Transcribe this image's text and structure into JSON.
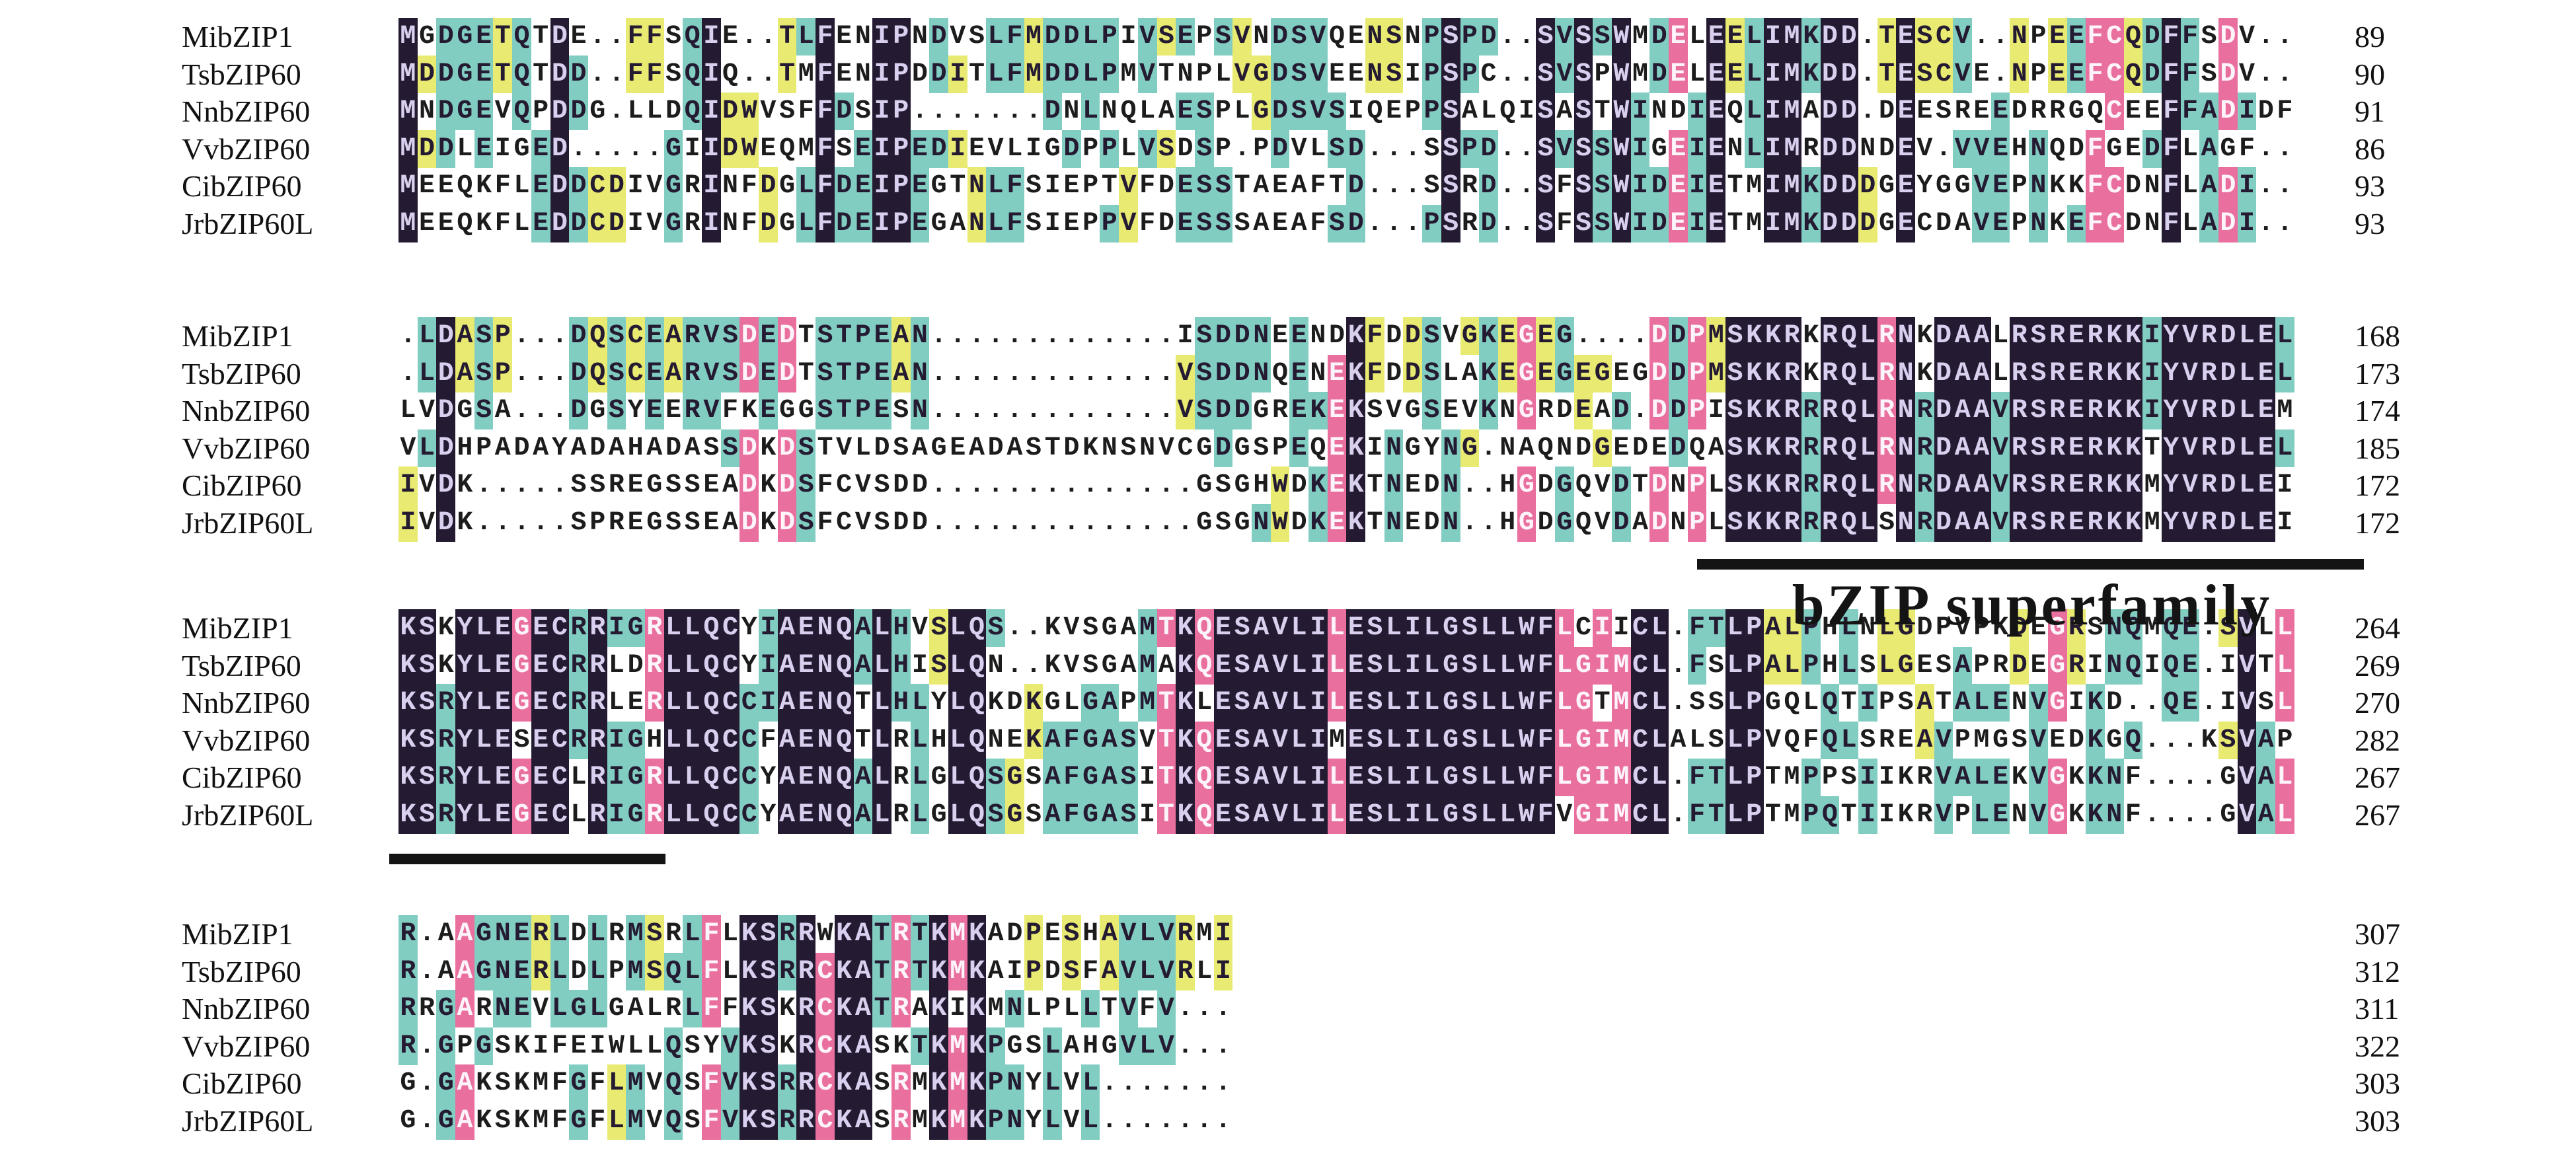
{
  "figure": {
    "kind": "multiple-sequence-alignment",
    "annotation": {
      "label": "bZIP superfamily"
    },
    "palette": {
      "identity_100": "#241b32",
      "identity_83": "#e96f9f",
      "identity_50_67": "#82cdc2",
      "identity_33": "#e9ea71",
      "background": "#ffffff",
      "text_on_dark": "#d9cfee",
      "text_plain": "#1c1c1c"
    },
    "row_labels": [
      "MibZIP1",
      "TsbZIP60",
      "NnbZIP60",
      "VvbZIP60",
      "CibZIP60",
      "JrbZIP60L"
    ],
    "blocks": [
      {
        "sequences": [
          "MGDGETQTDE..FFSQIE..TLFENIPNDVSLFMDDLPIVSEPSVNDSVQENSNPSPD..SVSSWMDELEELIMKDD.TESCV..NPEEFCQDFFSDV..",
          "MDDGETQTDD..FFSQIQ..TMFENIPDDITLFMDDLPMVTNPLVGDSVEENSIPSPC..SVSPWMDELEELIMKDD.TESCVE.NPEEFCQDFFSDV..",
          "MNDGEVQPDDG.LLDQIDWVSFFDSIP.......DNLNQLAESPLGDSVSIQEPPSALQISASTWINDIEQLIMADD.DEESREEDRRGQCEEFFADIDF",
          "MDDLEIGED.....GIIDWEQMFSEIPEDIEVLIGDPPLVSDSP.PDVLSD...SSPD..SVSSWIGEIENLIMRDDNDEV.VVEHNQDFGEDFLAGF..",
          "MEEQKFLEDDCDIVGRINFDGLFDEIPEGTNLFSIEPTVFDESSTAEAFTD...SSRD..SFSSWIDEIETMIMKDDDGEYGGVEPNKKFCDNFLADI..",
          "MEEQKFLEDDCDIVGRINFDGLFDEIPEGANLFSIEPPVFDESSSAEAFSD...PSRD..SFSSWIDEIETMIMKDDDGECDAVEPNKEFCDNFLADI.."
        ],
        "end_positions": [
          89,
          90,
          91,
          86,
          93,
          93
        ]
      },
      {
        "sequences": [
          ".LDASP...DQSCEARVSDEDTSTPEAN.............ISDDNEENDKFDDSVGKEGEG....DDPMSKKRKRQLRNKDAALRSRERKKIYVRDLEL",
          ".LDASP...DQSCEARVSDEDTSTPEAN.............VSDDNQENEKFDDSLAKEGEGEGEGDDPMSKKRKRQLRNKDAALRSRERKKIYVRDLEL",
          "LVDGSA...DGSYEERVFKEGGSTPESN.............VSDDGREKEKSVGSEVKNGRDEAD.DDPISKKRRRQLRNRDAAVRSRERKKIYVRDLEM",
          "VLDHPADAYADAHADASSDKDSTVLDSAGEADASTDKNSNVCGDGSPEQEKINGYNG.NAQNDGEDEDQASKKRRRQLRNRDAAVRSRERKKTYVRDLEL",
          "IVDK.....SSREGSSEADKDSFCVSDD..............GSGHWDKEKTNEDN..HGDGQVDTDNPLSKKRRRQLRNRDAAVRSRERKKMYVRDLEI",
          "IVDK.....SPREGSSEADKDSFCVSDD..............GSGNWDKEKTNEDN..HGDGQVDADNPLSKKRRRQLSNRDAAVRSRERKKMYVRDLEI"
        ],
        "end_positions": [
          168,
          173,
          174,
          185,
          172,
          172
        ]
      },
      {
        "sequences": [
          "KSKYLEGECRRIGRLLQCYIAENQALHVSLQS..KVSGAMTKQESAVLILESLILGSLLWFLCIICL.FTLPALPHLNLGDPVPKDEGRSNQMQE.SVLL",
          "KSKYLEGECRRLDRLLQCYIAENQALHISLQN..KVSGAMAKQESAVLILESLILGSLLWFLGIMCL.FSLPALPHLSLGESAPRDEGRINQIQE.IVTL",
          "KSRYLEGECRRLERLLQCCIAENQTLHLYLQKDKGLGAPMTKLESAVLILESLILGSLLWFLGTMCL.SSLPGQLQTIPSATALENVGIKD..QE.IVSL",
          "KSRYLESECRRIGHLLQCCFAENQTLRLHLQNEKAFGASVTKQESAVLIMESLILGSLLWFLGIMCLALSLPVQFQLSREAVPMGSVEDKGQ...KSVAP",
          "KSRYLEGECLRIGRLLQCCYAENQALRLGLQSGSAFGASITKQESAVLILESLILGSLLWFLGIMCL.FTLPTMPPSIIKRVALEKVGKKNF....GVAL",
          "KSRYLEGECLRIGRLLQCCYAENQALRLGLQSGSAFGASITKQESAVLILESLILGSLLWFVGIMCL.FTLPTMPQTIIKRVPLENVGKKNF....GVAL"
        ],
        "end_positions": [
          264,
          269,
          270,
          282,
          267,
          267
        ]
      },
      {
        "sequences": [
          "R.AAGNERLDLRMSRLFLKSRRWKATRTKMKADPESHAVLVRMI",
          "R.AAGNERLDLPMSQLFLKSRRCKATRTKMKAIPDSFAVLVRLI",
          "RRGARNEVLGLGALRLFFKSKRCKATRAKIKMNLPLLTVFV...",
          "R.GPGSKIFEIWLLQSYVKSKRCKASKTKMKPGSLAHGVLV...",
          "G.GAKSKMFGFLMVQSFVKSRRCKASRMKMKPNYLVL.......",
          "G.GAKSKMFGFLMVQSFVKSRRCKASRMKMKPNYLVL......."
        ],
        "end_positions": [
          307,
          312,
          311,
          322,
          303,
          303
        ]
      }
    ]
  }
}
